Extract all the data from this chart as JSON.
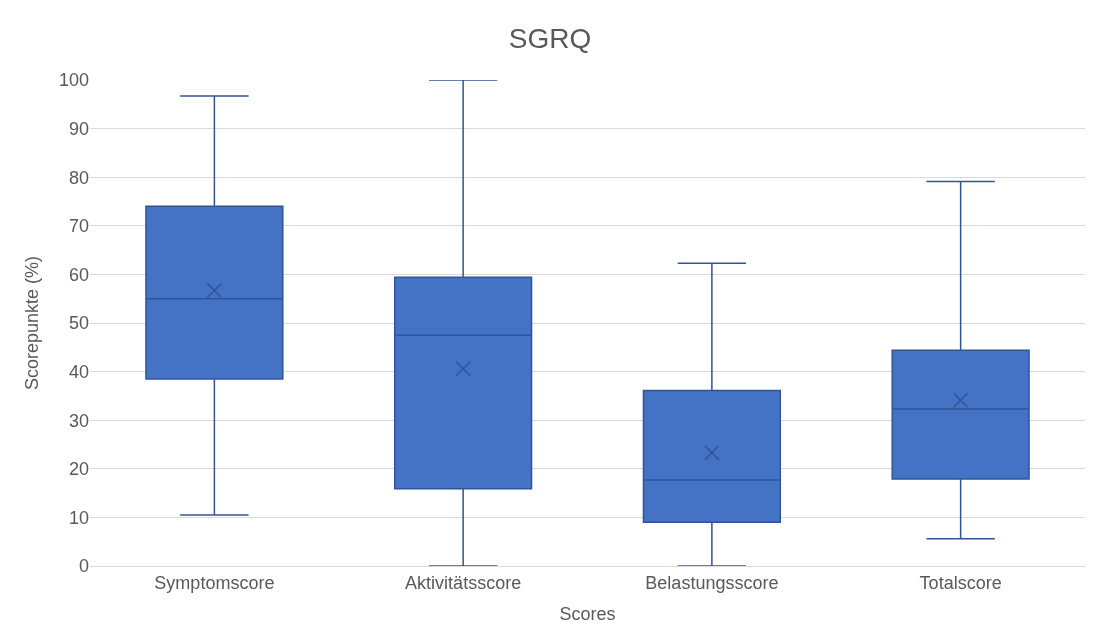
{
  "chart_data": {
    "type": "box",
    "title": "SGRQ",
    "xlabel": "Scores",
    "ylabel": "Scorepunkte (%)",
    "categories": [
      "Symptomscore",
      "Aktivitätsscore",
      "Belastungsscore",
      "Totalscore"
    ],
    "color": "#4472c4",
    "boxes": [
      {
        "low": 10.5,
        "q1": 38.5,
        "median": 55,
        "q3": 74,
        "high": 96.7,
        "mean": 56.7
      },
      {
        "low": 0,
        "q1": 15.9,
        "median": 47.5,
        "q3": 59.4,
        "high": 100,
        "mean": 40.6
      },
      {
        "low": 0,
        "q1": 9,
        "median": 17.7,
        "q3": 36.1,
        "high": 62.3,
        "mean": 23.3
      },
      {
        "low": 5.6,
        "q1": 17.9,
        "median": 32.3,
        "q3": 44.4,
        "high": 79.1,
        "mean": 34.1
      }
    ],
    "ylim": [
      0,
      100
    ],
    "yticks": [
      0,
      10,
      20,
      30,
      40,
      50,
      60,
      70,
      80,
      90,
      100
    ],
    "grid": "y"
  }
}
